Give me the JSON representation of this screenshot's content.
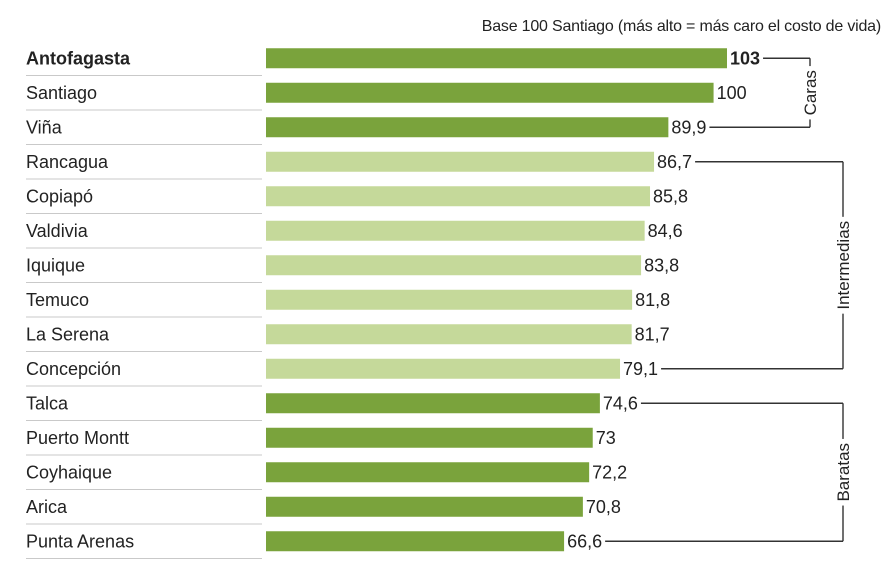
{
  "chart_data": {
    "type": "bar",
    "orientation": "horizontal",
    "subtitle": "Base 100 Santiago (más alto = más caro el costo de vida)",
    "categories": [
      "Antofagasta",
      "Santiago",
      "Viña",
      "Rancagua",
      "Copiapó",
      "Valdivia",
      "Iquique",
      "Temuco",
      "La Serena",
      "Concepción",
      "Talca",
      "Puerto Montt",
      "Coyhaique",
      "Arica",
      "Punta Arenas"
    ],
    "values": [
      103,
      100,
      89.9,
      86.7,
      85.8,
      84.6,
      83.8,
      81.8,
      81.7,
      79.1,
      74.6,
      73,
      72.2,
      70.8,
      66.6
    ],
    "value_labels": [
      "103",
      "100",
      "89,9",
      "86,7",
      "85,8",
      "84,6",
      "83,8",
      "81,8",
      "81,7",
      "79,1",
      "74,6",
      "73",
      "72,2",
      "70,8",
      "66,6"
    ],
    "highlight": [
      "Antofagasta"
    ],
    "groups": [
      {
        "label": "Caras",
        "start": 0,
        "end": 2,
        "color": "#7aa33c"
      },
      {
        "label": "Intermedias",
        "start": 3,
        "end": 9,
        "color": "#c5d99a"
      },
      {
        "label": "Baratas",
        "start": 10,
        "end": 14,
        "color": "#7aa33c"
      }
    ],
    "xlim": [
      0,
      103
    ],
    "grid": false,
    "colors": {
      "dark_green": "#7aa33c",
      "light_green": "#c5d99a",
      "row_line": "#c9c9c9",
      "bracket": "#333333"
    }
  }
}
